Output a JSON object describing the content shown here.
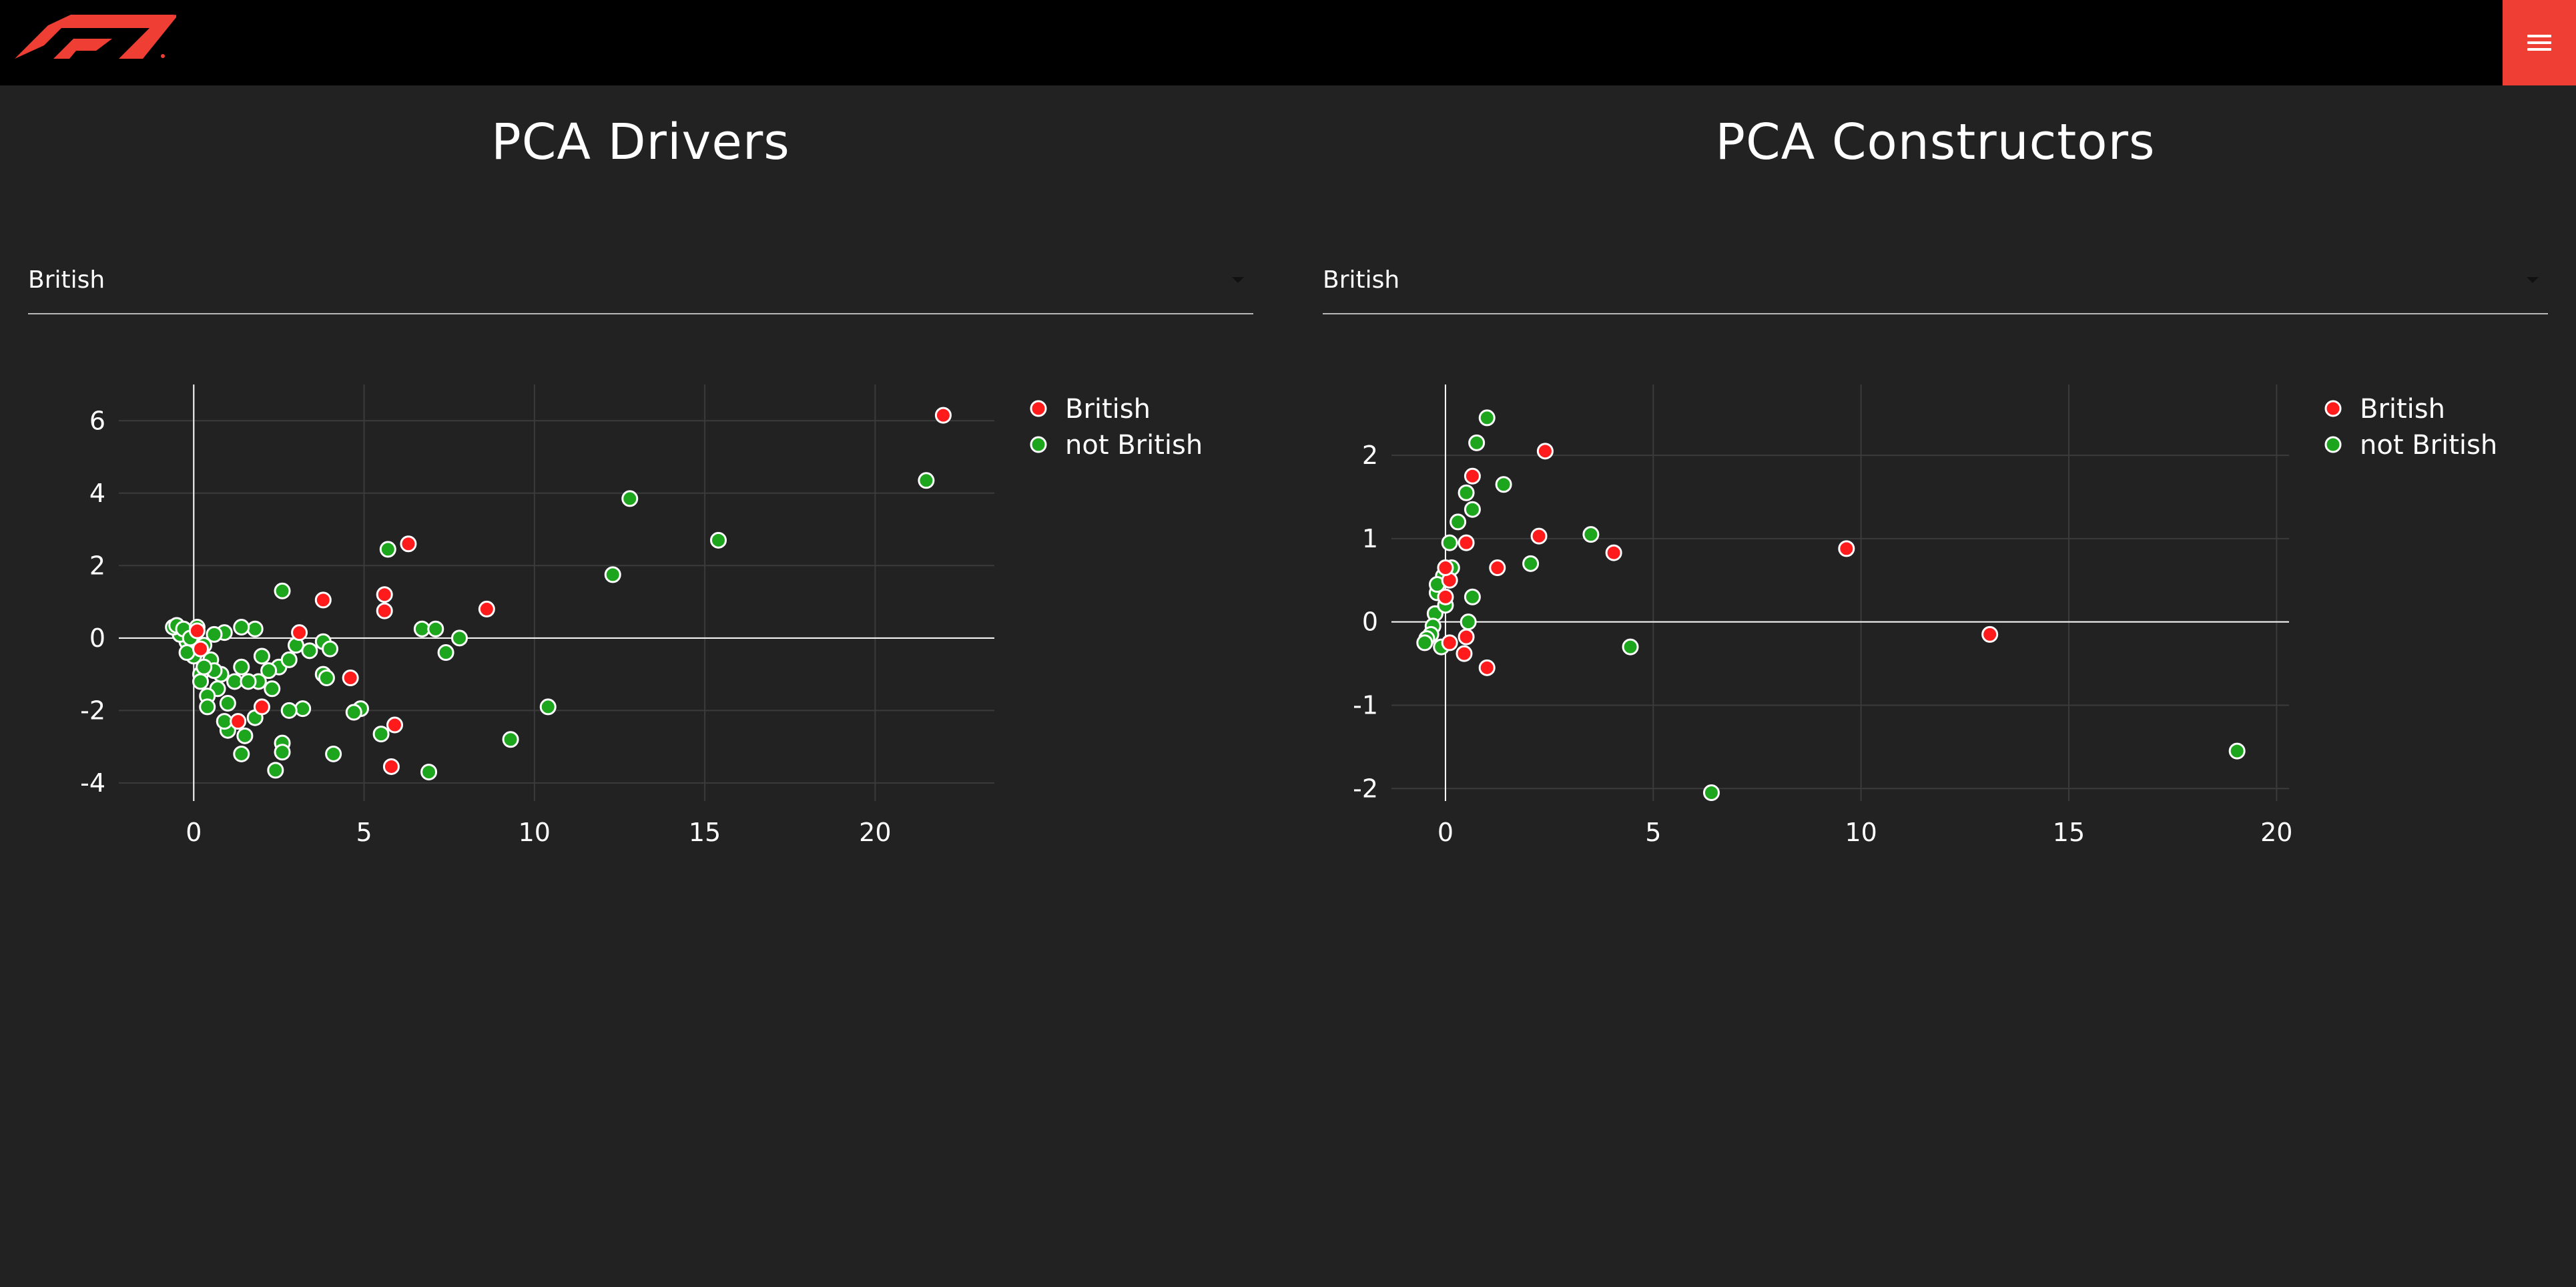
{
  "header": {
    "logo_name": "f1-logo",
    "menu_icon": "hamburger-menu-icon",
    "brand_color": "#ef3e34"
  },
  "panels": [
    {
      "title": "PCA Drivers",
      "dropdown": {
        "selected": "British"
      }
    },
    {
      "title": "PCA Constructors",
      "dropdown": {
        "selected": "British"
      }
    }
  ],
  "chart_data": [
    {
      "type": "scatter",
      "title": "",
      "xlabel": "",
      "ylabel": "",
      "xlim": [
        -2.2,
        23.5
      ],
      "ylim": [
        -4.5,
        7
      ],
      "xticks": [
        0,
        5,
        10,
        15,
        20
      ],
      "yticks": [
        -4,
        -2,
        0,
        2,
        4,
        6
      ],
      "grid": true,
      "legend_placement": "top-right",
      "series": [
        {
          "name": "British",
          "color": "#ff1b1b",
          "points": [
            [
              22,
              6.15
            ],
            [
              6.3,
              2.6
            ],
            [
              3.8,
              1.05
            ],
            [
              5.6,
              1.2
            ],
            [
              5.6,
              0.75
            ],
            [
              8.6,
              0.8
            ],
            [
              3.1,
              0.15
            ],
            [
              4.6,
              -1.1
            ],
            [
              5.9,
              -2.4
            ],
            [
              5.8,
              -3.55
            ],
            [
              2.0,
              -1.9
            ],
            [
              1.3,
              -2.3
            ],
            [
              0.1,
              0.2
            ],
            [
              0.2,
              -0.3
            ]
          ]
        },
        {
          "name": "not British",
          "color": "#1ea51e",
          "points": [
            [
              21.5,
              4.35
            ],
            [
              12.8,
              3.85
            ],
            [
              15.4,
              2.7
            ],
            [
              12.3,
              1.75
            ],
            [
              5.7,
              2.45
            ],
            [
              2.6,
              1.3
            ],
            [
              6.7,
              0.25
            ],
            [
              7.1,
              0.25
            ],
            [
              7.8,
              0.0
            ],
            [
              7.4,
              -0.4
            ],
            [
              10.4,
              -1.9
            ],
            [
              9.3,
              -2.8
            ],
            [
              6.9,
              -3.7
            ],
            [
              4.9,
              -1.95
            ],
            [
              4.7,
              -2.05
            ],
            [
              4.1,
              -3.2
            ],
            [
              5.5,
              -2.65
            ],
            [
              2.4,
              -3.65
            ],
            [
              2.6,
              -2.9
            ],
            [
              2.6,
              -3.15
            ],
            [
              3.2,
              -1.95
            ],
            [
              2.8,
              -2.0
            ],
            [
              1.8,
              0.25
            ],
            [
              1.4,
              0.3
            ],
            [
              0.9,
              0.15
            ],
            [
              0.6,
              0.1
            ],
            [
              3.0,
              -0.2
            ],
            [
              3.4,
              -0.35
            ],
            [
              3.8,
              -0.1
            ],
            [
              4.0,
              -0.3
            ],
            [
              3.8,
              -1.0
            ],
            [
              3.9,
              -1.1
            ],
            [
              2.5,
              -0.8
            ],
            [
              2.3,
              -1.4
            ],
            [
              2.8,
              -0.6
            ],
            [
              1.4,
              -0.8
            ],
            [
              1.2,
              -1.2
            ],
            [
              0.8,
              -1.0
            ],
            [
              0.7,
              -1.4
            ],
            [
              1.0,
              -1.8
            ],
            [
              1.0,
              -2.55
            ],
            [
              1.5,
              -2.7
            ],
            [
              1.4,
              -3.2
            ],
            [
              1.8,
              -2.2
            ],
            [
              0.4,
              -1.6
            ],
            [
              0.2,
              -1.0
            ],
            [
              0.0,
              -0.5
            ],
            [
              -0.2,
              -0.1
            ],
            [
              -0.4,
              0.1
            ],
            [
              -0.6,
              0.3
            ],
            [
              -0.5,
              0.35
            ],
            [
              -0.3,
              0.25
            ],
            [
              0.3,
              -0.2
            ],
            [
              0.5,
              -0.6
            ],
            [
              0.6,
              -0.9
            ],
            [
              0.2,
              -1.2
            ],
            [
              0.4,
              -1.9
            ],
            [
              0.9,
              -2.3
            ],
            [
              1.9,
              -1.2
            ],
            [
              1.6,
              -1.2
            ],
            [
              2.2,
              -0.9
            ],
            [
              2.0,
              -0.5
            ],
            [
              -0.1,
              0.0
            ],
            [
              0.1,
              0.3
            ],
            [
              -0.2,
              -0.4
            ],
            [
              0.3,
              -0.8
            ]
          ]
        }
      ]
    },
    {
      "type": "scatter",
      "title": "",
      "xlabel": "",
      "ylabel": "",
      "xlim": [
        -1.3,
        20.3
      ],
      "ylim": [
        -2.15,
        2.85
      ],
      "xticks": [
        0,
        5,
        10,
        15,
        20
      ],
      "yticks": [
        -2,
        -1,
        0,
        1,
        2
      ],
      "grid": true,
      "legend_placement": "top-right",
      "series": [
        {
          "name": "British",
          "color": "#ff1b1b",
          "points": [
            [
              2.4,
              2.05
            ],
            [
              0.65,
              1.75
            ],
            [
              0.5,
              0.95
            ],
            [
              1.25,
              0.65
            ],
            [
              2.25,
              1.03
            ],
            [
              4.05,
              0.83
            ],
            [
              9.65,
              0.88
            ],
            [
              13.1,
              -0.15
            ],
            [
              0.5,
              -0.18
            ],
            [
              0.45,
              -0.38
            ],
            [
              1.0,
              -0.55
            ],
            [
              0.0,
              0.3
            ],
            [
              0.1,
              0.5
            ],
            [
              0.0,
              0.65
            ],
            [
              0.1,
              -0.25
            ]
          ]
        },
        {
          "name": "not British",
          "color": "#1ea51e",
          "points": [
            [
              1.0,
              2.45
            ],
            [
              0.75,
              2.15
            ],
            [
              1.4,
              1.65
            ],
            [
              0.5,
              1.55
            ],
            [
              0.65,
              1.35
            ],
            [
              0.3,
              1.2
            ],
            [
              3.5,
              1.05
            ],
            [
              2.05,
              0.7
            ],
            [
              0.1,
              0.95
            ],
            [
              0.15,
              0.65
            ],
            [
              0.65,
              0.3
            ],
            [
              0.55,
              0.0
            ],
            [
              4.45,
              -0.3
            ],
            [
              6.4,
              -2.05
            ],
            [
              19.05,
              -1.55
            ],
            [
              -0.05,
              0.55
            ],
            [
              -0.2,
              0.35
            ],
            [
              -0.25,
              0.1
            ],
            [
              -0.3,
              -0.05
            ],
            [
              -0.35,
              -0.15
            ],
            [
              -0.45,
              -0.2
            ],
            [
              -0.5,
              -0.25
            ],
            [
              -0.1,
              -0.3
            ],
            [
              0.0,
              0.2
            ],
            [
              -0.2,
              0.45
            ]
          ]
        }
      ]
    }
  ]
}
